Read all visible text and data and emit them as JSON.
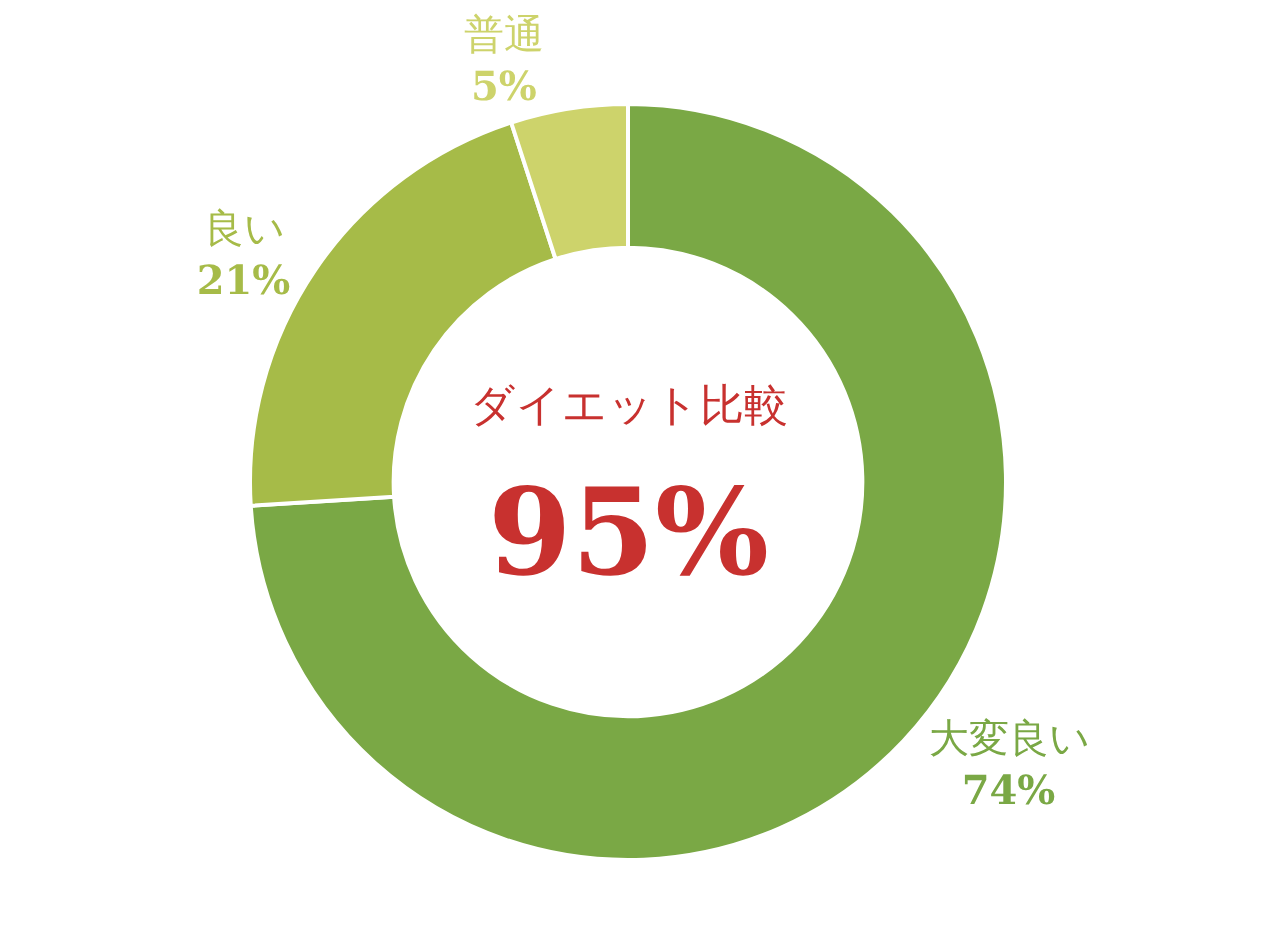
{
  "chart_data": {
    "type": "donut",
    "title": "ダイエット比較",
    "annotations": [
      "95%"
    ],
    "categories": [
      "大変良い",
      "良い",
      "普通"
    ],
    "values": [
      74,
      21,
      5
    ],
    "colors": [
      "#7aa845",
      "#a6bb48",
      "#cdd36b"
    ],
    "value_labels": [
      "74%",
      "21%",
      "5%"
    ],
    "legend": false
  }
}
